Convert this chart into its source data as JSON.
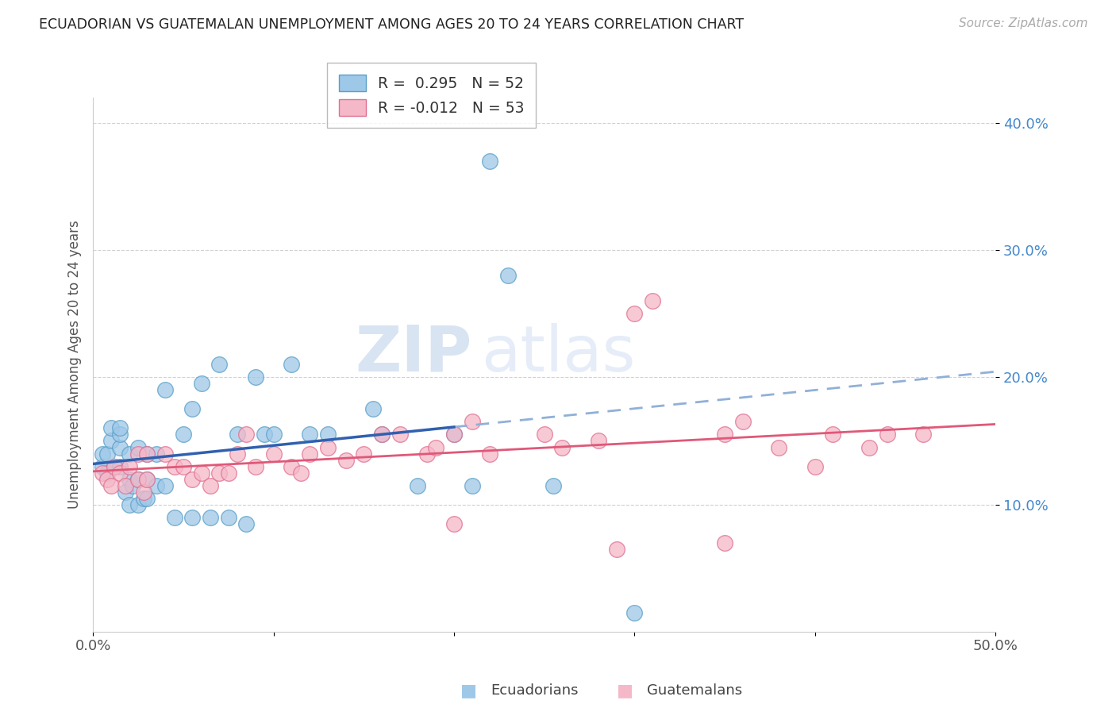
{
  "title": "ECUADORIAN VS GUATEMALAN UNEMPLOYMENT AMONG AGES 20 TO 24 YEARS CORRELATION CHART",
  "source": "Source: ZipAtlas.com",
  "ylabel": "Unemployment Among Ages 20 to 24 years",
  "xlim": [
    0.0,
    0.5
  ],
  "ylim": [
    0.0,
    0.42
  ],
  "yticks": [
    0.1,
    0.2,
    0.3,
    0.4
  ],
  "ytick_labels": [
    "10.0%",
    "20.0%",
    "30.0%",
    "40.0%"
  ],
  "xticks": [
    0.0,
    0.1,
    0.2,
    0.3,
    0.4,
    0.5
  ],
  "xtick_labels": [
    "0.0%",
    "",
    "",
    "",
    "",
    "50.0%"
  ],
  "ecu_R": 0.295,
  "ecu_N": 52,
  "gua_R": -0.012,
  "gua_N": 53,
  "ecuadorian_color_fill": "#9ec8e8",
  "ecuadorian_color_edge": "#5a9fc8",
  "guatemalan_color_fill": "#f5b8c8",
  "guatemalan_color_edge": "#e07090",
  "trend_ecu_color": "#3060b0",
  "trend_gua_color": "#e05878",
  "trend_ecu_dash_color": "#90b0d8",
  "background_color": "#ffffff",
  "ecuadorian_x": [
    0.005,
    0.005,
    0.008,
    0.008,
    0.01,
    0.01,
    0.012,
    0.015,
    0.015,
    0.015,
    0.015,
    0.018,
    0.02,
    0.02,
    0.02,
    0.022,
    0.025,
    0.025,
    0.025,
    0.028,
    0.03,
    0.03,
    0.03,
    0.035,
    0.035,
    0.04,
    0.04,
    0.045,
    0.05,
    0.055,
    0.055,
    0.06,
    0.065,
    0.07,
    0.075,
    0.08,
    0.085,
    0.09,
    0.095,
    0.1,
    0.11,
    0.12,
    0.13,
    0.155,
    0.16,
    0.18,
    0.2,
    0.21,
    0.22,
    0.23,
    0.255,
    0.3
  ],
  "ecuadorian_y": [
    0.13,
    0.14,
    0.125,
    0.14,
    0.15,
    0.16,
    0.13,
    0.13,
    0.145,
    0.155,
    0.16,
    0.11,
    0.1,
    0.12,
    0.14,
    0.115,
    0.1,
    0.12,
    0.145,
    0.105,
    0.105,
    0.12,
    0.14,
    0.115,
    0.14,
    0.115,
    0.19,
    0.09,
    0.155,
    0.09,
    0.175,
    0.195,
    0.09,
    0.21,
    0.09,
    0.155,
    0.085,
    0.2,
    0.155,
    0.155,
    0.21,
    0.155,
    0.155,
    0.175,
    0.155,
    0.115,
    0.155,
    0.115,
    0.37,
    0.28,
    0.115,
    0.015
  ],
  "guatemalan_x": [
    0.005,
    0.008,
    0.01,
    0.012,
    0.015,
    0.018,
    0.02,
    0.025,
    0.025,
    0.028,
    0.03,
    0.03,
    0.04,
    0.045,
    0.05,
    0.055,
    0.06,
    0.065,
    0.07,
    0.075,
    0.08,
    0.085,
    0.09,
    0.1,
    0.11,
    0.115,
    0.12,
    0.13,
    0.14,
    0.15,
    0.16,
    0.17,
    0.185,
    0.19,
    0.2,
    0.21,
    0.22,
    0.25,
    0.26,
    0.28,
    0.3,
    0.31,
    0.35,
    0.36,
    0.38,
    0.4,
    0.41,
    0.43,
    0.44,
    0.46,
    0.2,
    0.29,
    0.35
  ],
  "guatemalan_y": [
    0.125,
    0.12,
    0.115,
    0.13,
    0.125,
    0.115,
    0.13,
    0.12,
    0.14,
    0.11,
    0.12,
    0.14,
    0.14,
    0.13,
    0.13,
    0.12,
    0.125,
    0.115,
    0.125,
    0.125,
    0.14,
    0.155,
    0.13,
    0.14,
    0.13,
    0.125,
    0.14,
    0.145,
    0.135,
    0.14,
    0.155,
    0.155,
    0.14,
    0.145,
    0.155,
    0.165,
    0.14,
    0.155,
    0.145,
    0.15,
    0.25,
    0.26,
    0.155,
    0.165,
    0.145,
    0.13,
    0.155,
    0.145,
    0.155,
    0.155,
    0.085,
    0.065,
    0.07
  ]
}
